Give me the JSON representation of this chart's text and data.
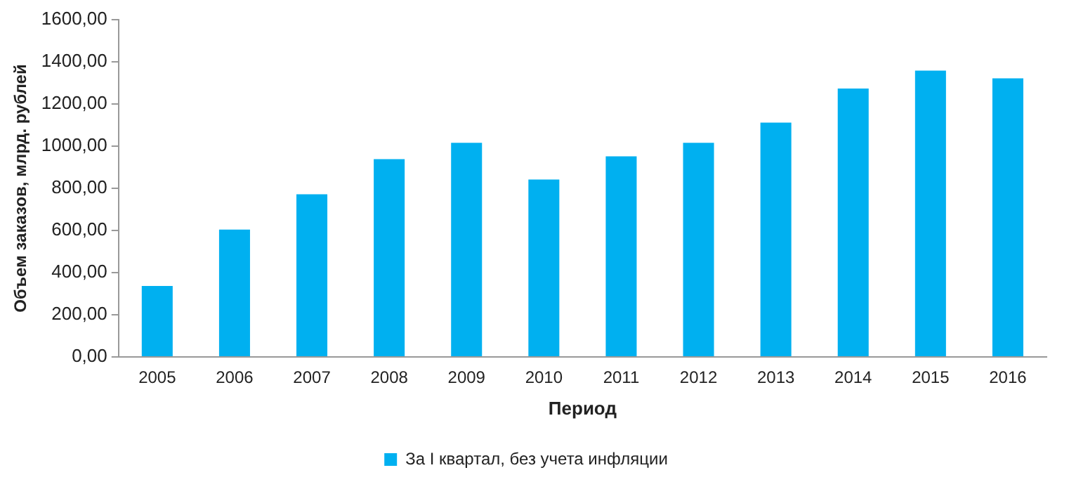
{
  "chart_data": {
    "type": "bar",
    "xlabel": "Период",
    "ylabel": "Объем заказов, млрд. рублей",
    "categories": [
      "2005",
      "2006",
      "2007",
      "2008",
      "2009",
      "2010",
      "2011",
      "2012",
      "2013",
      "2014",
      "2015",
      "2016"
    ],
    "series": [
      {
        "name": "За I квартал, без учета инфляции",
        "color": "#00b0f0",
        "values": [
          337,
          604,
          772,
          938,
          1016,
          842,
          952,
          1016,
          1112,
          1273,
          1358,
          1322
        ]
      }
    ],
    "ylim": [
      0,
      1600
    ],
    "yticks": [
      {
        "value": 0,
        "label": "0,00"
      },
      {
        "value": 200,
        "label": "200,00"
      },
      {
        "value": 400,
        "label": "400,00"
      },
      {
        "value": 600,
        "label": "600,00"
      },
      {
        "value": 800,
        "label": "800,00"
      },
      {
        "value": 1000,
        "label": "1000,00"
      },
      {
        "value": 1200,
        "label": "1200,00"
      },
      {
        "value": 1400,
        "label": "1400,00"
      },
      {
        "value": 1600,
        "label": "1600,00"
      }
    ],
    "grid": false,
    "legend": "bottom"
  }
}
